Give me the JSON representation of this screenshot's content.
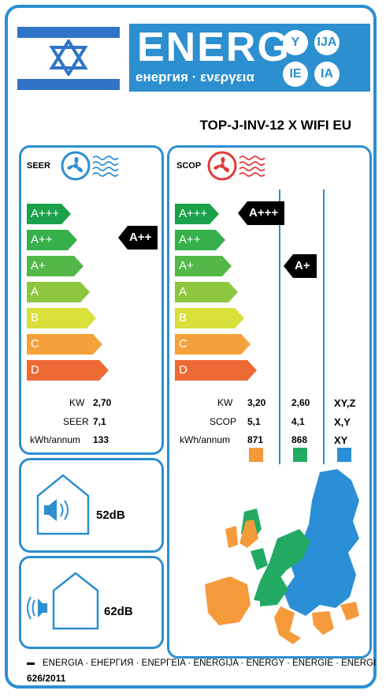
{
  "header": {
    "energ": "ENERG",
    "sub": "енергия · ενεργεια",
    "circles": [
      "Y",
      "IJA",
      "IE",
      "IA"
    ]
  },
  "model": "TOP-J-INV-12 X WIFI EU",
  "classes": [
    "A+++",
    "A++",
    "A+",
    "A",
    "B",
    "C",
    "D"
  ],
  "class_colors": [
    "#1ba14a",
    "#36b04a",
    "#53b848",
    "#8dc63f",
    "#d8e03a",
    "#f5a13a",
    "#ee6a35"
  ],
  "seer": {
    "title": "SEER",
    "rating": "A++",
    "labels": [
      "KW",
      "SEER",
      "kWh/annum"
    ],
    "values": [
      "2,70",
      "7,1",
      "133"
    ]
  },
  "scop": {
    "title": "SCOP",
    "rating_left": "A+++",
    "rating_mid": "A+",
    "labels": [
      "KW",
      "SCOP",
      "kWh/annum"
    ],
    "col1": [
      "3,20",
      "5,1",
      "871"
    ],
    "col2": [
      "2,60",
      "4,1",
      "868"
    ],
    "col3": [
      "XY,Z",
      "X,Y",
      "XY"
    ],
    "zone_colors": [
      "#f59a3b",
      "#22aa63",
      "#2a8fd6"
    ]
  },
  "noise": {
    "indoor": "52dB",
    "outdoor": "62dB"
  },
  "footer": {
    "text": "ENERGIA · ЕНЕРГИЯ · ΕΝΕΡΓΕΙΑ · ENERGIJA · ENERGY · ENERGIE · ENERGI",
    "regulation": "626/2011"
  }
}
